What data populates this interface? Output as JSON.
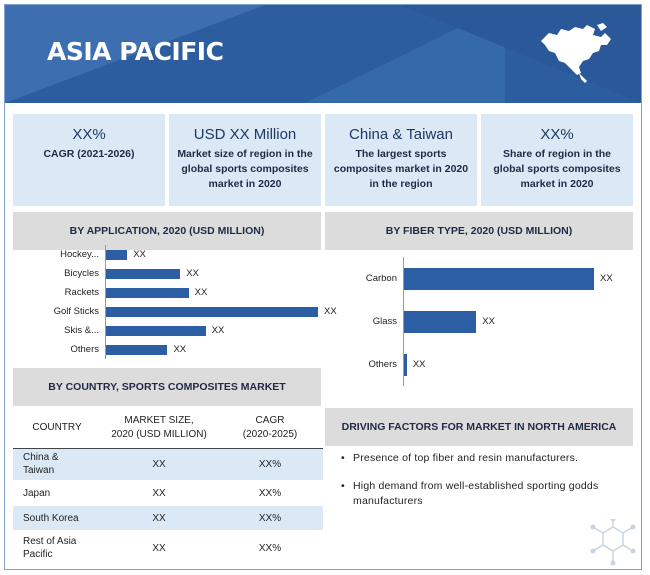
{
  "banner": {
    "title": "ASIA PACIFIC",
    "map_icon": "north-america-map-icon"
  },
  "stats": [
    {
      "big": "XX%",
      "small": "CAGR (2021-2026)"
    },
    {
      "big": "USD XX Million",
      "small": "Market size of region in the global sports composites market in 2020"
    },
    {
      "big": "China & Taiwan",
      "small": "The largest sports composites market in 2020 in the region"
    },
    {
      "big": "XX%",
      "small": "Share of region in the global sports composites market in 2020"
    }
  ],
  "application_header": "BY APPLICATION, 2020 (USD MILLION)",
  "fiber_header": "BY FIBER TYPE, 2020 (USD MILLION)",
  "chart_data": [
    {
      "type": "bar",
      "orientation": "horizontal",
      "title": "BY APPLICATION, 2020 (USD MILLION)",
      "categories": [
        "Hockey...",
        "Bicycles",
        "Rackets",
        "Golf Sticks",
        "Skis &...",
        "Others"
      ],
      "values": [
        10,
        35,
        39,
        100,
        47,
        29
      ],
      "data_labels": [
        "XX",
        "XX",
        "XX",
        "XX",
        "XX",
        "XX"
      ],
      "color": "#2b5ea3"
    },
    {
      "type": "bar",
      "orientation": "horizontal",
      "title": "BY FIBER TYPE, 2020 (USD MILLION)",
      "categories": [
        "Carbon",
        "Glass",
        "Others"
      ],
      "values": [
        100,
        38,
        1.5
      ],
      "data_labels": [
        "XX",
        "XX",
        "XX"
      ],
      "color": "#2b5ea3"
    }
  ],
  "country_section": {
    "header": "BY COUNTRY, SPORTS COMPOSITES MARKET",
    "columns": [
      "COUNTRY",
      "MARKET SIZE,\n2020 (USD MILLION)",
      "CAGR\n(2020-2025)"
    ],
    "rows": [
      [
        "China &\nTaiwan",
        "XX",
        "XX%"
      ],
      [
        "Japan",
        "XX",
        "XX%"
      ],
      [
        "South Korea",
        "XX",
        "XX%"
      ],
      [
        "Rest of Asia\nPacific",
        "XX",
        "XX%"
      ]
    ]
  },
  "driving": {
    "title": "DRIVING FACTORS FOR MARKET IN NORTH AMERICA",
    "bullet": "•",
    "items": [
      "Presence of top fiber and resin manufacturers.",
      "High demand from well-established sporting godds manufacturers"
    ]
  },
  "decor_icon": "molecule-structure-icon"
}
